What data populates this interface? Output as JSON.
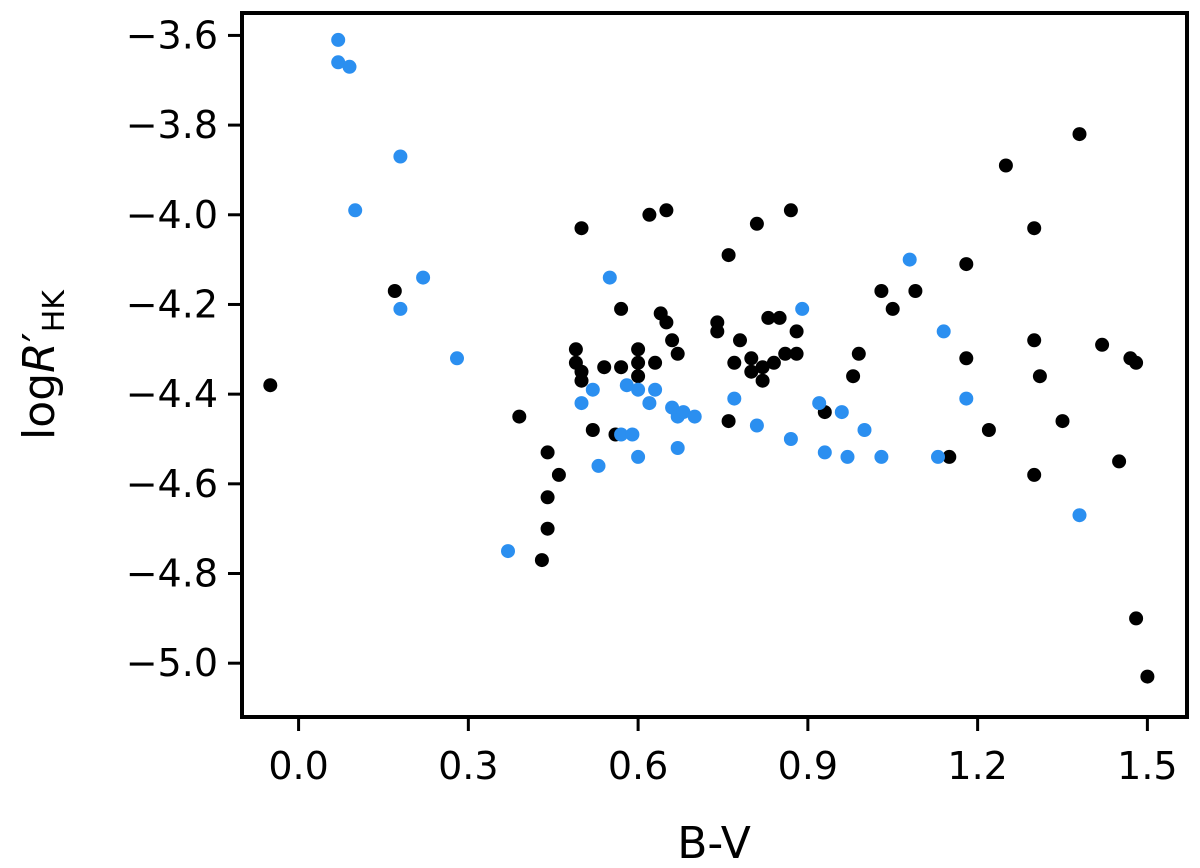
{
  "chart_data": {
    "type": "scatter",
    "title": "",
    "xlabel": "B-V",
    "ylabel": {
      "main": "log",
      "italic": "R",
      "prime": "′",
      "subscript": "HK"
    },
    "xlim": [
      -0.1,
      1.57
    ],
    "ylim": [
      -5.12,
      -3.55
    ],
    "xticks": [
      0.0,
      0.3,
      0.6,
      0.9,
      1.2,
      1.5
    ],
    "xtick_labels": [
      "0.0",
      "0.3",
      "0.6",
      "0.9",
      "1.2",
      "1.5"
    ],
    "yticks": [
      -3.6,
      -3.8,
      -4.0,
      -4.2,
      -4.4,
      -4.6,
      -4.8,
      -5.0
    ],
    "ytick_labels": [
      "−3.6",
      "−3.8",
      "−4.0",
      "−4.2",
      "−4.4",
      "−4.6",
      "−4.8",
      "−5.0"
    ],
    "grid": false,
    "legend": "none",
    "series": [
      {
        "color": "#000000",
        "points": [
          [
            -0.05,
            -4.38
          ],
          [
            0.17,
            -4.17
          ],
          [
            0.39,
            -4.45
          ],
          [
            0.43,
            -4.77
          ],
          [
            0.44,
            -4.53
          ],
          [
            0.44,
            -4.63
          ],
          [
            0.44,
            -4.7
          ],
          [
            0.46,
            -4.58
          ],
          [
            0.49,
            -4.3
          ],
          [
            0.49,
            -4.33
          ],
          [
            0.5,
            -4.35
          ],
          [
            0.5,
            -4.37
          ],
          [
            0.5,
            -4.03
          ],
          [
            0.52,
            -4.48
          ],
          [
            0.54,
            -4.34
          ],
          [
            0.56,
            -4.49
          ],
          [
            0.57,
            -4.34
          ],
          [
            0.57,
            -4.21
          ],
          [
            0.6,
            -4.3
          ],
          [
            0.6,
            -4.33
          ],
          [
            0.6,
            -4.36
          ],
          [
            0.62,
            -4.0
          ],
          [
            0.63,
            -4.33
          ],
          [
            0.64,
            -4.22
          ],
          [
            0.65,
            -3.99
          ],
          [
            0.65,
            -4.24
          ],
          [
            0.66,
            -4.28
          ],
          [
            0.67,
            -4.31
          ],
          [
            0.74,
            -4.24
          ],
          [
            0.74,
            -4.26
          ],
          [
            0.76,
            -4.09
          ],
          [
            0.76,
            -4.46
          ],
          [
            0.77,
            -4.33
          ],
          [
            0.78,
            -4.28
          ],
          [
            0.8,
            -4.32
          ],
          [
            0.8,
            -4.35
          ],
          [
            0.81,
            -4.02
          ],
          [
            0.82,
            -4.37
          ],
          [
            0.82,
            -4.34
          ],
          [
            0.83,
            -4.23
          ],
          [
            0.84,
            -4.33
          ],
          [
            0.85,
            -4.23
          ],
          [
            0.86,
            -4.31
          ],
          [
            0.87,
            -3.99
          ],
          [
            0.88,
            -4.26
          ],
          [
            0.88,
            -4.31
          ],
          [
            0.93,
            -4.44
          ],
          [
            0.98,
            -4.36
          ],
          [
            0.99,
            -4.31
          ],
          [
            1.03,
            -4.17
          ],
          [
            1.05,
            -4.21
          ],
          [
            1.09,
            -4.17
          ],
          [
            1.15,
            -4.54
          ],
          [
            1.18,
            -4.11
          ],
          [
            1.18,
            -4.32
          ],
          [
            1.22,
            -4.48
          ],
          [
            1.25,
            -3.89
          ],
          [
            1.3,
            -4.03
          ],
          [
            1.3,
            -4.28
          ],
          [
            1.3,
            -4.58
          ],
          [
            1.31,
            -4.36
          ],
          [
            1.35,
            -4.46
          ],
          [
            1.38,
            -3.82
          ],
          [
            1.42,
            -4.29
          ],
          [
            1.45,
            -4.55
          ],
          [
            1.47,
            -4.32
          ],
          [
            1.48,
            -4.33
          ],
          [
            1.48,
            -4.9
          ],
          [
            1.5,
            -5.03
          ]
        ]
      },
      {
        "color": "#2b8ff0",
        "points": [
          [
            0.07,
            -3.61
          ],
          [
            0.07,
            -3.66
          ],
          [
            0.09,
            -3.67
          ],
          [
            0.1,
            -3.99
          ],
          [
            0.18,
            -3.87
          ],
          [
            0.18,
            -4.21
          ],
          [
            0.22,
            -4.14
          ],
          [
            0.28,
            -4.32
          ],
          [
            0.37,
            -4.75
          ],
          [
            0.5,
            -4.42
          ],
          [
            0.52,
            -4.39
          ],
          [
            0.53,
            -4.56
          ],
          [
            0.55,
            -4.14
          ],
          [
            0.57,
            -4.49
          ],
          [
            0.58,
            -4.38
          ],
          [
            0.59,
            -4.49
          ],
          [
            0.6,
            -4.39
          ],
          [
            0.6,
            -4.54
          ],
          [
            0.62,
            -4.42
          ],
          [
            0.63,
            -4.39
          ],
          [
            0.66,
            -4.43
          ],
          [
            0.67,
            -4.45
          ],
          [
            0.67,
            -4.52
          ],
          [
            0.68,
            -4.44
          ],
          [
            0.7,
            -4.45
          ],
          [
            0.77,
            -4.41
          ],
          [
            0.81,
            -4.47
          ],
          [
            0.87,
            -4.5
          ],
          [
            0.89,
            -4.21
          ],
          [
            0.92,
            -4.42
          ],
          [
            0.93,
            -4.53
          ],
          [
            0.96,
            -4.44
          ],
          [
            0.97,
            -4.54
          ],
          [
            1.0,
            -4.48
          ],
          [
            1.03,
            -4.54
          ],
          [
            1.08,
            -4.1
          ],
          [
            1.13,
            -4.54
          ],
          [
            1.14,
            -4.26
          ],
          [
            1.18,
            -4.41
          ],
          [
            1.38,
            -4.67
          ]
        ]
      }
    ]
  }
}
